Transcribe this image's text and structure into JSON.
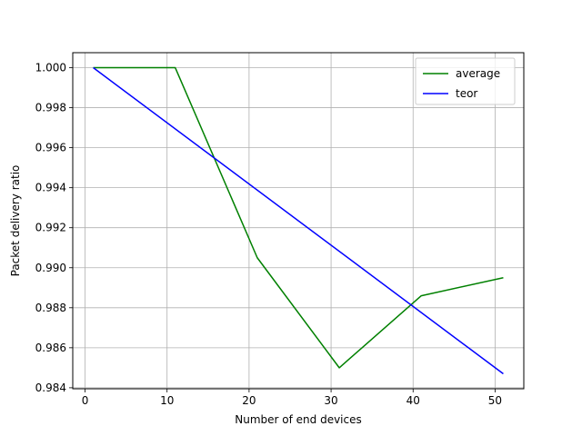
{
  "chart_data": {
    "type": "line",
    "title": "",
    "xlabel": "Number of end devices",
    "ylabel": "Packet delivery ratio",
    "xlim": [
      -1.5,
      53.5
    ],
    "ylim": [
      0.98395,
      1.00075
    ],
    "x_ticks": [
      0,
      10,
      20,
      30,
      40,
      50
    ],
    "x_tick_labels": [
      "0",
      "10",
      "20",
      "30",
      "40",
      "50"
    ],
    "y_ticks": [
      0.984,
      0.986,
      0.988,
      0.99,
      0.992,
      0.994,
      0.996,
      0.998,
      1.0
    ],
    "y_tick_labels": [
      "0.984",
      "0.986",
      "0.988",
      "0.990",
      "0.992",
      "0.994",
      "0.996",
      "0.998",
      "1.000"
    ],
    "grid": true,
    "legend_position": "top-right",
    "series": [
      {
        "name": "average",
        "color": "#008000",
        "x": [
          1,
          11,
          21,
          31,
          41,
          51
        ],
        "y": [
          1.0,
          1.0,
          0.9905,
          0.985,
          0.9886,
          0.9895
        ]
      },
      {
        "name": "teor",
        "color": "#0000ff",
        "x": [
          1,
          51
        ],
        "y": [
          1.0,
          0.9847
        ]
      }
    ]
  }
}
